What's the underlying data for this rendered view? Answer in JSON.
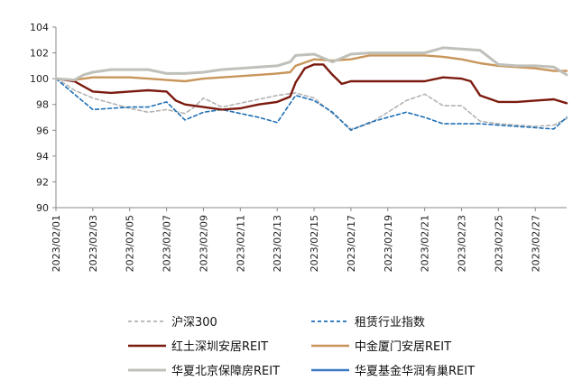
{
  "chart_data": {
    "type": "line",
    "ylim": [
      90,
      104
    ],
    "yticks": [
      90,
      92,
      94,
      96,
      98,
      100,
      102,
      104
    ],
    "x_tick_labels": [
      "2023/02/01",
      "2023/02/03",
      "2023/02/05",
      "2023/02/07",
      "2023/02/09",
      "2023/02/11",
      "2023/02/13",
      "2023/02/15",
      "2023/02/17",
      "2023/02/19",
      "2023/02/21",
      "2023/02/23",
      "2023/02/25",
      "2023/02/27"
    ],
    "x_tick_positions": [
      0,
      2,
      4,
      6,
      8,
      10,
      12,
      14,
      16,
      18,
      20,
      22,
      24,
      26
    ],
    "x_range": [
      0,
      27.7
    ],
    "grid": false,
    "legend_position": "bottom",
    "series": [
      {
        "name": "沪深300",
        "color": "#b3b3b3",
        "style": "dashed",
        "x": [
          0,
          0.5,
          1,
          2,
          3,
          4,
          5,
          6,
          7,
          7.5,
          8,
          9,
          10,
          11,
          12,
          13,
          14,
          15,
          16,
          17,
          18,
          19,
          20,
          21,
          22,
          23,
          24,
          25,
          26,
          27,
          27.7
        ],
        "y": [
          100.0,
          99.6,
          99.1,
          98.5,
          98.1,
          97.7,
          97.4,
          97.6,
          97.3,
          97.8,
          98.5,
          97.8,
          98.1,
          98.4,
          98.7,
          98.9,
          98.5,
          97.3,
          96.1,
          96.5,
          97.4,
          98.3,
          98.8,
          97.9,
          97.9,
          96.7,
          96.5,
          96.4,
          96.3,
          96.4,
          96.9
        ]
      },
      {
        "name": "租赁行业指数",
        "color": "#1f6fb5",
        "style": "dashed",
        "x": [
          0,
          1,
          2,
          3,
          4,
          5,
          6,
          7,
          8,
          9,
          10,
          11,
          12,
          13,
          14,
          15,
          16,
          17,
          18,
          19,
          20,
          21,
          22,
          23,
          24,
          25,
          26,
          27,
          27.7
        ],
        "y": [
          100.0,
          98.8,
          97.6,
          97.7,
          97.8,
          97.8,
          98.2,
          96.8,
          97.4,
          97.6,
          97.3,
          97.0,
          96.6,
          98.7,
          98.3,
          97.4,
          96.0,
          96.6,
          97.0,
          97.4,
          97.0,
          96.5,
          96.5,
          96.5,
          96.4,
          96.3,
          96.2,
          96.1,
          97.0
        ]
      },
      {
        "name": "红土深圳安居REIT",
        "color": "#7b1a0f",
        "style": "solid",
        "x": [
          0,
          1,
          2,
          3,
          4,
          5,
          6,
          6.5,
          7,
          8,
          9,
          10,
          11,
          12,
          12.7,
          13,
          13.5,
          14,
          14.5,
          15,
          15.5,
          16,
          17,
          18,
          19,
          20,
          21,
          22,
          22.5,
          23,
          24,
          25,
          26,
          27,
          27.7
        ],
        "y": [
          100.0,
          99.8,
          99.0,
          98.9,
          99.0,
          99.1,
          99.0,
          98.3,
          98.0,
          97.8,
          97.6,
          97.7,
          98.0,
          98.2,
          98.6,
          99.7,
          100.8,
          101.1,
          101.1,
          100.3,
          99.6,
          99.8,
          99.8,
          99.8,
          99.8,
          99.8,
          100.1,
          100.0,
          99.8,
          98.7,
          98.2,
          98.2,
          98.3,
          98.4,
          98.1
        ]
      },
      {
        "name": "中金厦门安居REIT",
        "color": "#c8955a",
        "style": "solid",
        "x": [
          0,
          1,
          2,
          3,
          4,
          5,
          6,
          7,
          8,
          9,
          10,
          11,
          12,
          12.7,
          13,
          14,
          15,
          16,
          17,
          18,
          19,
          20,
          21,
          22,
          23,
          24,
          25,
          26,
          27,
          27.7
        ],
        "y": [
          100.0,
          99.9,
          100.1,
          100.1,
          100.1,
          100.0,
          99.9,
          99.8,
          100.0,
          100.1,
          100.2,
          100.3,
          100.4,
          100.5,
          101.0,
          101.5,
          101.4,
          101.5,
          101.8,
          101.8,
          101.8,
          101.8,
          101.7,
          101.5,
          101.2,
          101.0,
          100.9,
          100.8,
          100.6,
          100.6
        ]
      },
      {
        "name": "华夏北京保障房REIT",
        "color": "#c0c0bb",
        "style": "solid",
        "x": [
          0,
          1,
          1.5,
          2,
          3,
          4,
          5,
          6,
          7,
          8,
          9,
          10,
          11,
          12,
          12.7,
          13,
          14,
          15,
          16,
          17,
          18,
          19,
          20,
          21,
          22,
          23,
          24,
          25,
          26,
          27,
          27.7
        ],
        "y": [
          100.0,
          99.9,
          100.3,
          100.5,
          100.7,
          100.7,
          100.7,
          100.4,
          100.4,
          100.5,
          100.7,
          100.8,
          100.9,
          101.0,
          101.3,
          101.8,
          101.9,
          101.3,
          101.9,
          102.0,
          102.0,
          102.0,
          102.0,
          102.4,
          102.3,
          102.2,
          101.1,
          101.0,
          101.0,
          100.9,
          100.3
        ]
      },
      {
        "name": "华夏基金华润有巢REIT",
        "color": "#3a78c2",
        "style": "solid",
        "x": [],
        "y": []
      }
    ]
  }
}
